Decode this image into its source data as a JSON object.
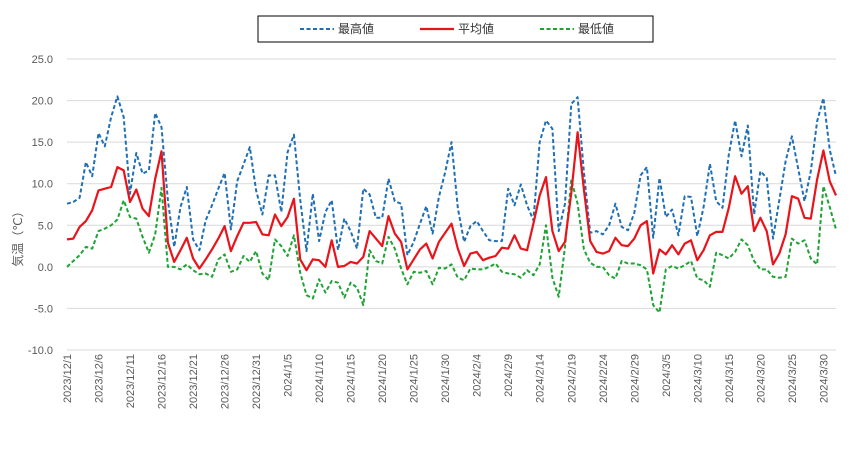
{
  "chart_data": {
    "type": "line",
    "ylabel": "気温（℃）",
    "ylim": [
      -10,
      25
    ],
    "yticks": [
      "25.0",
      "20.0",
      "15.0",
      "10.0",
      "5.0",
      "0.0",
      "-5.0",
      "-10.0"
    ],
    "ytick_values": [
      25,
      20,
      15,
      10,
      5,
      0,
      -5,
      -10
    ],
    "x_start": "2023-12-01",
    "x_end": "2024-03-31",
    "xtick_labels": [
      "2023/12/1",
      "2023/12/6",
      "2023/12/11",
      "2023/12/16",
      "2023/12/21",
      "2023/12/26",
      "2023/12/31",
      "2024/1/5",
      "2024/1/10",
      "2024/1/15",
      "2024/1/20",
      "2024/1/25",
      "2024/1/30",
      "2024/2/4",
      "2024/2/9",
      "2024/2/14",
      "2024/2/19",
      "2024/2/24",
      "2024/2/29",
      "2024/3/5",
      "2024/3/10",
      "2024/3/15",
      "2024/3/20",
      "2024/3/25",
      "2024/3/30"
    ],
    "grid": "horizontal",
    "legend": "top-center",
    "series": [
      {
        "name": "最高値",
        "color": "#1F6FB5",
        "style": "dashed",
        "values": [
          7.6,
          7.8,
          8.3,
          12.6,
          10.9,
          16.1,
          14.5,
          18.0,
          20.5,
          18.0,
          8.8,
          13.7,
          11.2,
          11.6,
          18.5,
          16.8,
          8.0,
          2.4,
          7.2,
          9.6,
          3.3,
          2.0,
          5.6,
          7.4,
          9.4,
          11.3,
          4.5,
          10.3,
          12.3,
          14.4,
          9.2,
          6.3,
          11.0,
          11.0,
          6.6,
          13.8,
          15.9,
          8.1,
          1.9,
          8.8,
          3.1,
          6.6,
          8.0,
          2.0,
          5.8,
          4.3,
          2.2,
          9.4,
          8.7,
          5.9,
          5.9,
          10.6,
          7.9,
          7.6,
          1.4,
          3.0,
          5.2,
          7.3,
          4.0,
          8.4,
          11.4,
          15.0,
          7.1,
          3.0,
          4.9,
          5.5,
          4.3,
          3.2,
          3.1,
          3.1,
          9.4,
          7.4,
          9.9,
          7.4,
          5.6,
          15.0,
          17.6,
          16.6,
          4.3,
          7.6,
          19.6,
          20.4,
          11.4,
          4.1,
          4.3,
          3.9,
          5.0,
          7.6,
          4.8,
          4.4,
          6.5,
          11.0,
          12.0,
          3.5,
          10.7,
          6.0,
          6.9,
          3.8,
          8.5,
          8.4,
          3.7,
          7.2,
          12.4,
          7.9,
          7.1,
          13.5,
          17.6,
          13.3,
          17.0,
          6.3,
          11.5,
          10.7,
          3.4,
          8.0,
          12.7,
          15.7,
          11.8,
          7.9,
          11.5,
          17.5,
          20.3,
          14.1,
          10.9
        ]
      },
      {
        "name": "平均値",
        "color": "#E8141B",
        "style": "solid",
        "values": [
          3.3,
          3.4,
          4.8,
          5.5,
          6.8,
          9.2,
          9.4,
          9.6,
          12.0,
          11.6,
          7.8,
          9.3,
          7.0,
          6.1,
          10.6,
          13.9,
          2.9,
          0.6,
          2.0,
          3.5,
          1.0,
          -0.2,
          0.9,
          2.1,
          3.4,
          4.9,
          1.9,
          3.7,
          5.3,
          5.3,
          5.4,
          3.9,
          3.8,
          6.3,
          4.9,
          6.0,
          8.2,
          0.9,
          -0.4,
          0.9,
          0.8,
          0.0,
          3.2,
          0.0,
          0.1,
          0.6,
          0.4,
          1.2,
          4.3,
          3.4,
          2.5,
          6.1,
          4.0,
          3.0,
          -0.3,
          0.9,
          2.1,
          2.8,
          1.0,
          3.0,
          4.1,
          5.2,
          2.2,
          0.1,
          1.6,
          1.8,
          0.8,
          1.1,
          1.3,
          2.3,
          2.2,
          3.8,
          2.2,
          2.0,
          5.2,
          8.6,
          10.8,
          4.3,
          1.9,
          3.0,
          8.9,
          16.2,
          9.3,
          3.1,
          1.8,
          1.6,
          1.9,
          3.5,
          2.6,
          2.5,
          3.4,
          5.0,
          5.5,
          -0.8,
          2.1,
          1.5,
          2.6,
          1.5,
          2.8,
          3.2,
          0.8,
          2.0,
          3.8,
          4.2,
          4.2,
          7.1,
          10.9,
          8.8,
          9.7,
          4.3,
          5.9,
          4.3,
          0.3,
          1.6,
          3.9,
          8.5,
          8.2,
          5.9,
          5.8,
          10.5,
          14.0,
          10.3,
          8.6
        ]
      },
      {
        "name": "最低値",
        "color": "#1EA334",
        "style": "dashed",
        "values": [
          0.0,
          0.7,
          1.4,
          2.4,
          2.2,
          4.3,
          4.6,
          5.0,
          5.7,
          8.0,
          6.0,
          5.8,
          3.6,
          1.7,
          3.9,
          9.5,
          0.0,
          0.0,
          -0.3,
          0.3,
          -0.4,
          -0.9,
          -0.8,
          -1.2,
          0.9,
          1.5,
          -0.6,
          -0.3,
          1.3,
          0.6,
          1.9,
          -0.8,
          -1.6,
          3.3,
          2.5,
          1.3,
          3.8,
          -0.7,
          -3.4,
          -3.8,
          -1.5,
          -3.1,
          -1.7,
          -1.9,
          -3.7,
          -1.9,
          -2.5,
          -4.6,
          2.0,
          0.7,
          0.4,
          3.6,
          2.2,
          -0.2,
          -2.1,
          -0.6,
          -0.7,
          -0.5,
          -2.1,
          -0.1,
          -0.2,
          0.3,
          -1.3,
          -1.6,
          -0.2,
          -0.3,
          -0.3,
          0.0,
          0.4,
          -0.6,
          -0.8,
          -0.9,
          -1.3,
          -0.4,
          -1.0,
          0.3,
          5.0,
          -1.3,
          -3.6,
          2.4,
          10.5,
          7.6,
          2.1,
          0.5,
          0.0,
          0.0,
          -1.0,
          -1.4,
          0.7,
          0.4,
          0.4,
          0.2,
          -0.3,
          -4.6,
          -5.5,
          -0.3,
          0.1,
          -0.2,
          0.2,
          0.7,
          -1.4,
          -1.6,
          -2.4,
          1.7,
          1.4,
          1.0,
          1.8,
          3.3,
          2.6,
          0.7,
          -0.3,
          -0.3,
          -1.2,
          -1.3,
          -1.2,
          3.4,
          2.8,
          3.2,
          1.0,
          0.3,
          9.7,
          7.2,
          4.5
        ]
      }
    ]
  }
}
